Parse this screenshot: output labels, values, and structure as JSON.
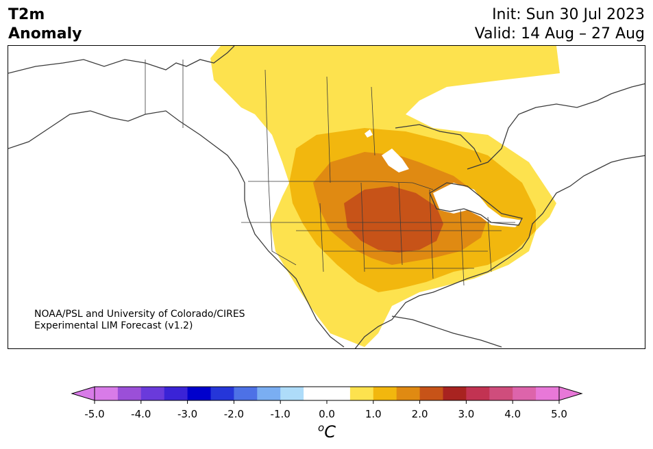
{
  "header": {
    "variable_line1": "T2m",
    "variable_line2": "Anomaly",
    "init": "Init: Sun 30 Jul 2023",
    "valid": "Valid: 14 Aug – 27 Aug"
  },
  "credit": {
    "line1": "NOAA/PSL and University of Colorado/CIRES",
    "line2": "Experimental LIM Forecast (v1.2)"
  },
  "colorbar": {
    "unit": "C",
    "unit_prefix": "o",
    "tick_labels": [
      "-5.0",
      "-4.0",
      "-3.0",
      "-2.0",
      "-1.0",
      "0.0",
      "1.0",
      "2.0",
      "3.0",
      "4.0",
      "5.0"
    ],
    "colors": [
      "#d87be8",
      "#9b4fd8",
      "#6a3adb",
      "#3a23d6",
      "#0000cc",
      "#2536d9",
      "#4d71e6",
      "#7aaef2",
      "#aedcf9",
      "#ffffff",
      "#ffffff",
      "#fde24e",
      "#f2b70e",
      "#e08a12",
      "#c75318",
      "#a82320",
      "#c23352",
      "#cf4d7c",
      "#dd64ab",
      "#e878d8"
    ],
    "under_color": "#d87be8",
    "over_color": "#e878d8"
  },
  "map": {
    "region": "North America",
    "legend_colors": {
      "light": "#fde24e",
      "mid": "#f2b70e",
      "high": "#e08a12",
      "peak": "#c75318"
    }
  }
}
